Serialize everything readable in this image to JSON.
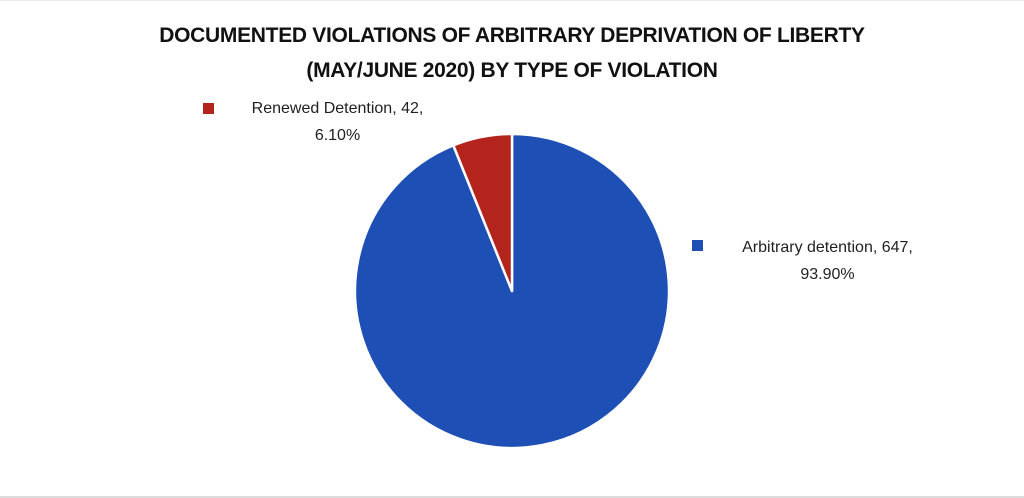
{
  "page": {
    "background": "#ffffff",
    "top_divider_color": "#e8e8e8",
    "bottom_divider_color": "#dcdcdc"
  },
  "chart": {
    "title_line1": "DOCUMENTED VIOLATIONS OF ARBITRARY DEPRIVATION OF LIBERTY",
    "title_line2": "(MAY/JUNE 2020) BY TYPE OF VIOLATION"
  },
  "chart_data": {
    "type": "pie",
    "title": "DOCUMENTED VIOLATIONS OF ARBITRARY DEPRIVATION OF LIBERTY (MAY/JUNE 2020) BY TYPE OF VIOLATION",
    "start_angle_deg": 0,
    "direction": "clockwise",
    "total": 689,
    "slice_separator_color": "#ffffff",
    "legend_position": "data-labels-beside-pie",
    "slices": [
      {
        "id": "arbitrary-detention",
        "label": "Arbitrary detention",
        "value": 647,
        "percent": "93.90%",
        "color": "#1d4fb5",
        "label_line1": "Arbitrary detention, 647,",
        "label_line2": "93.90%"
      },
      {
        "id": "renewed-detention",
        "label": "Renewed Detention",
        "value": 42,
        "percent": "6.10%",
        "color": "#b2241c",
        "label_line1": "Renewed Detention, 42,",
        "label_line2": "6.10%"
      }
    ]
  }
}
